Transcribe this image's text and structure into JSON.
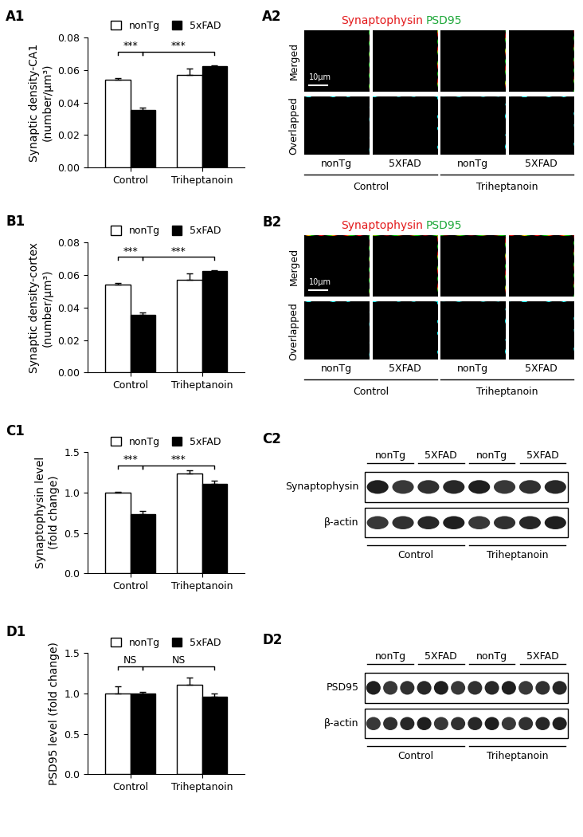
{
  "chart_data": [
    {
      "panel": "A1",
      "type": "bar",
      "ylabel": "Synaptic density-CA1\n(number/μm³)",
      "categories": [
        "Control",
        "Triheptanoin"
      ],
      "series": [
        {
          "name": "nonTg",
          "color": "#ffffff",
          "values": [
            0.054,
            0.057
          ],
          "errors": [
            0.001,
            0.004
          ]
        },
        {
          "name": "5xFAD",
          "color": "#000000",
          "values": [
            0.0355,
            0.0625
          ],
          "errors": [
            0.0015,
            0.0005
          ]
        }
      ],
      "ylim": [
        0,
        0.08
      ],
      "yticks": [
        {
          "value": 0,
          "label": "0.00"
        },
        {
          "value": 0.02,
          "label": "0.02"
        },
        {
          "value": 0.04,
          "label": "0.04"
        },
        {
          "value": 0.06,
          "label": "0.06"
        },
        {
          "value": 0.08,
          "label": "0.08"
        }
      ],
      "legend": "upper center",
      "significance": [
        {
          "label": "***",
          "from": {
            "series": 0,
            "category": 0
          },
          "to": {
            "series": 1,
            "category": 0
          }
        },
        {
          "label": "***",
          "from": {
            "series": 1,
            "category": 0
          },
          "to": {
            "series": 1,
            "category": 1
          }
        }
      ]
    },
    {
      "panel": "B1",
      "type": "bar",
      "ylabel": "Synaptic density-cortex\n(number/μm³)",
      "categories": [
        "Control",
        "Triheptanoin"
      ],
      "series": [
        {
          "name": "nonTg",
          "color": "#ffffff",
          "values": [
            0.054,
            0.057
          ],
          "errors": [
            0.001,
            0.004
          ]
        },
        {
          "name": "5xFAD",
          "color": "#000000",
          "values": [
            0.0355,
            0.0625
          ],
          "errors": [
            0.0015,
            0.0005
          ]
        }
      ],
      "ylim": [
        0,
        0.08
      ],
      "yticks": [
        {
          "value": 0,
          "label": "0.00"
        },
        {
          "value": 0.02,
          "label": "0.02"
        },
        {
          "value": 0.04,
          "label": "0.04"
        },
        {
          "value": 0.06,
          "label": "0.06"
        },
        {
          "value": 0.08,
          "label": "0.08"
        }
      ],
      "legend": "upper center",
      "significance": [
        {
          "label": "***",
          "from": {
            "series": 0,
            "category": 0
          },
          "to": {
            "series": 1,
            "category": 0
          }
        },
        {
          "label": "***",
          "from": {
            "series": 1,
            "category": 0
          },
          "to": {
            "series": 1,
            "category": 1
          }
        }
      ]
    },
    {
      "panel": "C1",
      "type": "bar",
      "ylabel": "Synaptophysin level\n(fold change)",
      "categories": [
        "Control",
        "Triheptanoin"
      ],
      "series": [
        {
          "name": "nonTg",
          "color": "#ffffff",
          "values": [
            1.0,
            1.23
          ],
          "errors": [
            0.01,
            0.04
          ]
        },
        {
          "name": "5xFAD",
          "color": "#000000",
          "values": [
            0.73,
            1.11
          ],
          "errors": [
            0.04,
            0.04
          ]
        }
      ],
      "ylim": [
        0,
        1.5
      ],
      "yticks": [
        {
          "value": 0,
          "label": "0.0"
        },
        {
          "value": 0.5,
          "label": "0.5"
        },
        {
          "value": 1.0,
          "label": "1.0"
        },
        {
          "value": 1.5,
          "label": "1.5"
        }
      ],
      "legend": "upper center",
      "significance": [
        {
          "label": "***",
          "from": {
            "series": 0,
            "category": 0
          },
          "to": {
            "series": 1,
            "category": 0
          }
        },
        {
          "label": "***",
          "from": {
            "series": 1,
            "category": 0
          },
          "to": {
            "series": 1,
            "category": 1
          }
        }
      ]
    },
    {
      "panel": "D1",
      "type": "bar",
      "ylabel": "PSD95 level (fold change)",
      "categories": [
        "Control",
        "Triheptanoin"
      ],
      "series": [
        {
          "name": "nonTg",
          "color": "#ffffff",
          "values": [
            1.0,
            1.11
          ],
          "errors": [
            0.09,
            0.08
          ]
        },
        {
          "name": "5xFAD",
          "color": "#000000",
          "values": [
            1.0,
            0.96
          ],
          "errors": [
            0.02,
            0.04
          ]
        }
      ],
      "ylim": [
        0,
        1.5
      ],
      "yticks": [
        {
          "value": 0,
          "label": "0.0"
        },
        {
          "value": 0.5,
          "label": "0.5"
        },
        {
          "value": 1.0,
          "label": "1.0"
        },
        {
          "value": 1.5,
          "label": "1.5"
        }
      ],
      "legend": "upper center",
      "significance": [
        {
          "label": "NS",
          "from": {
            "series": 0,
            "category": 0
          },
          "to": {
            "series": 1,
            "category": 0
          }
        },
        {
          "label": "NS",
          "from": {
            "series": 1,
            "category": 0
          },
          "to": {
            "series": 1,
            "category": 1
          }
        }
      ]
    }
  ],
  "image_panels": [
    {
      "panel": "A2",
      "channels": [
        {
          "name": "Synaptophysin",
          "color": "#e31a1c"
        },
        {
          "name": "PSD95",
          "color": "#1fa83a"
        }
      ],
      "rows": [
        "Merged",
        "Overlapped"
      ],
      "columns": [
        "nonTg",
        "5XFAD",
        "nonTg",
        "5XFAD"
      ],
      "groups": [
        "Control",
        "Triheptanoin"
      ],
      "scale_bar": "10μm"
    },
    {
      "panel": "B2",
      "channels": [
        {
          "name": "Synaptophysin",
          "color": "#e31a1c"
        },
        {
          "name": "PSD95",
          "color": "#1fa83a"
        }
      ],
      "rows": [
        "Merged",
        "Overlapped"
      ],
      "columns": [
        "nonTg",
        "5XFAD",
        "nonTg",
        "5XFAD"
      ],
      "groups": [
        "Control",
        "Triheptanoin"
      ],
      "scale_bar": "10μm"
    }
  ],
  "blots": [
    {
      "panel": "C2",
      "rows": [
        "Synaptophysin",
        "β-actin"
      ],
      "columns": [
        "nonTg",
        "5XFAD",
        "nonTg",
        "5XFAD"
      ],
      "lanes_per_column": 2,
      "groups": [
        "Control",
        "Triheptanoin"
      ]
    },
    {
      "panel": "D2",
      "rows": [
        "PSD95",
        "β-actin"
      ],
      "columns": [
        "nonTg",
        "5XFAD",
        "nonTg",
        "5XFAD"
      ],
      "lanes_per_column": 3,
      "groups": [
        "Control",
        "Triheptanoin"
      ]
    }
  ]
}
